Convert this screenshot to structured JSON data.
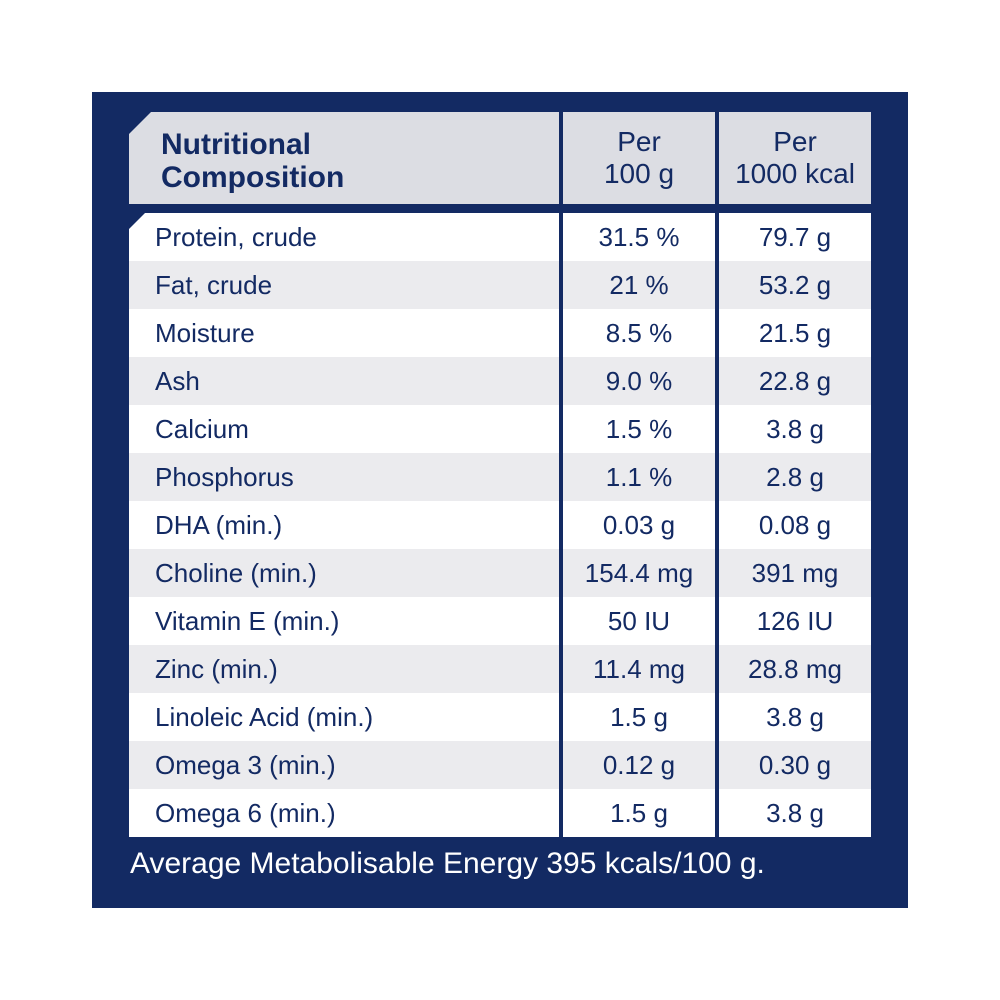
{
  "header": {
    "label_line1": "Nutritional",
    "label_line2": "Composition",
    "col1_line1": "Per",
    "col1_line2": "100 g",
    "col2_line1": "Per",
    "col2_line2": "1000 kcal"
  },
  "rows": [
    {
      "label": "Protein, crude",
      "per100g": "31.5 %",
      "per1000kcal": "79.7 g"
    },
    {
      "label": "Fat, crude",
      "per100g": "21 %",
      "per1000kcal": "53.2 g"
    },
    {
      "label": "Moisture",
      "per100g": "8.5 %",
      "per1000kcal": "21.5 g"
    },
    {
      "label": "Ash",
      "per100g": "9.0 %",
      "per1000kcal": "22.8 g"
    },
    {
      "label": "Calcium",
      "per100g": "1.5 %",
      "per1000kcal": "3.8 g"
    },
    {
      "label": "Phosphorus",
      "per100g": "1.1 %",
      "per1000kcal": "2.8 g"
    },
    {
      "label": "DHA (min.)",
      "per100g": "0.03 g",
      "per1000kcal": "0.08 g"
    },
    {
      "label": "Choline (min.)",
      "per100g": "154.4 mg",
      "per1000kcal": "391 mg"
    },
    {
      "label": "Vitamin E (min.)",
      "per100g": "50 IU",
      "per1000kcal": "126 IU"
    },
    {
      "label": "Zinc (min.)",
      "per100g": "11.4 mg",
      "per1000kcal": "28.8 mg"
    },
    {
      "label": "Linoleic Acid (min.)",
      "per100g": "1.5 g",
      "per1000kcal": "3.8 g"
    },
    {
      "label": "Omega 3 (min.)",
      "per100g": "0.12 g",
      "per1000kcal": "0.30 g"
    },
    {
      "label": "Omega 6 (min.)",
      "per100g": "1.5 g",
      "per1000kcal": "3.8 g"
    }
  ],
  "footer": "Average Metabolisable Energy 395 kcals/100 g.",
  "colors": {
    "panel": "#132a63",
    "header_bg": "#dcdde3",
    "row_alt": "#ebebee",
    "text": "#132a63"
  }
}
